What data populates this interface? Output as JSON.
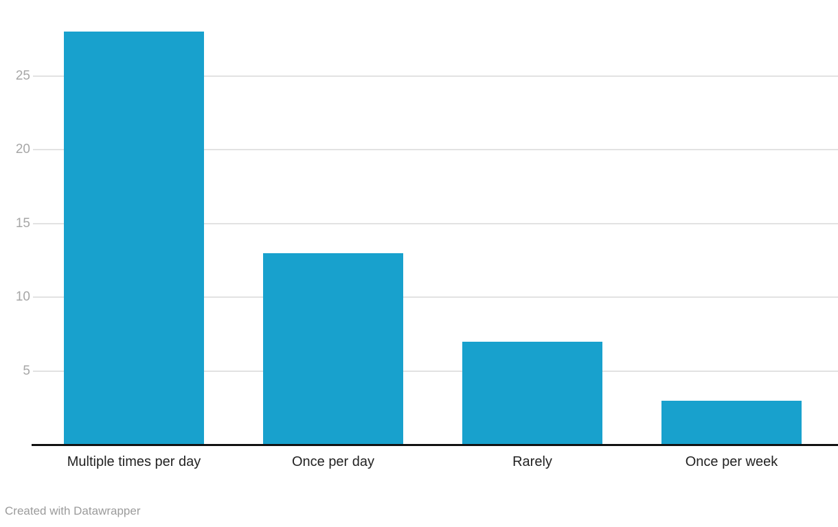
{
  "chart_data": {
    "type": "bar",
    "categories": [
      "Multiple times per day",
      "Once per day",
      "Rarely",
      "Once per week"
    ],
    "values": [
      28,
      13,
      7,
      3
    ],
    "title": "",
    "xlabel": "",
    "ylabel": "",
    "ylim": [
      0,
      28
    ],
    "yticks": [
      5,
      10,
      15,
      20,
      25
    ],
    "grid": true,
    "legend": false,
    "bar_color": "#18a1cd"
  },
  "footer": {
    "credit": "Created with Datawrapper"
  },
  "colors": {
    "bar": "#18a1cd",
    "gridline": "#e2e2e2",
    "axis_line": "#111111",
    "tick_label": "#a6a6a6",
    "category_label": "#222222",
    "credit_text": "#9b9b9b",
    "background": "#ffffff"
  }
}
